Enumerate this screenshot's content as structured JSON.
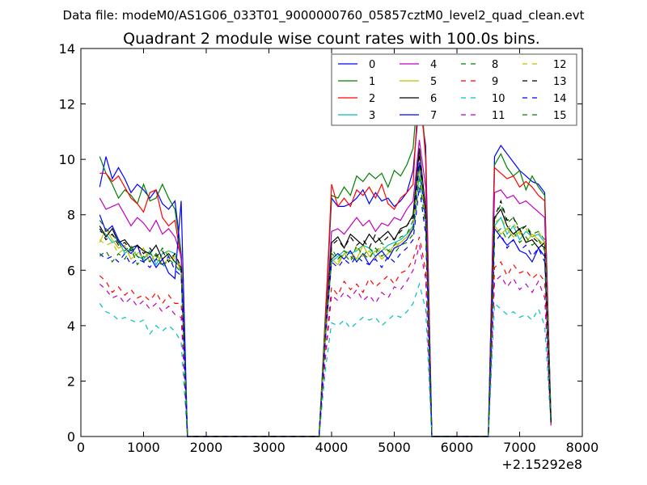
{
  "chart_data": {
    "type": "line",
    "suptitle": "Data file: modeM0/AS1G06_033T01_9000000760_05857cztM0_level2_quad_clean.evt",
    "title": "Quadrant 2 module wise count rates with 100.0s bins.",
    "xlabel": "",
    "ylabel": "",
    "x_offset_label": "+2.15292e8",
    "xlim": [
      0,
      8000
    ],
    "ylim": [
      0,
      14
    ],
    "xticks": [
      0,
      1000,
      2000,
      3000,
      4000,
      5000,
      6000,
      7000,
      8000
    ],
    "yticks": [
      0,
      2,
      4,
      6,
      8,
      10,
      12,
      14
    ],
    "grid": false,
    "legend_position": "top-right",
    "legend_columns": 4,
    "x": [
      300,
      400,
      500,
      600,
      700,
      800,
      900,
      1000,
      1100,
      1200,
      1300,
      1400,
      1500,
      1600,
      1700,
      3800,
      3900,
      4000,
      4100,
      4200,
      4300,
      4400,
      4500,
      4600,
      4700,
      4800,
      4900,
      5000,
      5100,
      5200,
      5300,
      5400,
      5500,
      5600,
      6500,
      6600,
      6700,
      6800,
      6900,
      7000,
      7100,
      7200,
      7300,
      7400,
      7500
    ],
    "series": [
      {
        "name": "0",
        "color": "#0000ff",
        "dash": "solid",
        "values": [
          9.0,
          10.1,
          9.3,
          9.7,
          9.3,
          8.8,
          9.1,
          8.9,
          8.6,
          8.9,
          8.4,
          8.2,
          8.5,
          6.6,
          0,
          0,
          4.2,
          8.6,
          8.3,
          8.3,
          8.4,
          8.6,
          8.9,
          8.4,
          8.8,
          8.5,
          8.6,
          8.3,
          8.5,
          8.8,
          9.6,
          12.1,
          10.5,
          0,
          0,
          10.1,
          10.5,
          10.2,
          9.9,
          9.6,
          9.4,
          9.2,
          9.1,
          8.8,
          0.6
        ]
      },
      {
        "name": "1",
        "color": "#008000",
        "dash": "solid",
        "values": [
          10.1,
          9.5,
          9.1,
          8.6,
          8.9,
          8.7,
          8.4,
          9.1,
          8.5,
          8.6,
          9.1,
          8.6,
          8.2,
          6.6,
          0,
          0,
          4.4,
          8.7,
          8.6,
          9.0,
          8.7,
          9.4,
          9.2,
          9.5,
          9.3,
          9.5,
          9.0,
          9.6,
          9.4,
          9.8,
          10.4,
          13.2,
          10.1,
          0,
          0,
          9.8,
          10.2,
          9.7,
          9.4,
          9.6,
          8.9,
          9.4,
          9.0,
          8.7,
          0.6
        ]
      },
      {
        "name": "2",
        "color": "#ff0000",
        "dash": "solid",
        "values": [
          9.5,
          9.5,
          9.2,
          9.4,
          9.0,
          8.6,
          8.4,
          8.1,
          8.8,
          8.9,
          7.9,
          7.6,
          7.8,
          6.4,
          0,
          0,
          4.1,
          9.1,
          8.3,
          8.6,
          8.3,
          8.9,
          8.7,
          9.0,
          8.6,
          9.1,
          8.4,
          8.2,
          8.6,
          8.8,
          9.1,
          13.0,
          10.0,
          0,
          0,
          9.7,
          9.5,
          9.3,
          9.4,
          9.0,
          9.2,
          9.0,
          8.7,
          8.5,
          0.5
        ]
      },
      {
        "name": "3",
        "color": "#00bfbf",
        "dash": "solid",
        "values": [
          7.4,
          7.3,
          7.0,
          7.1,
          6.6,
          6.8,
          6.5,
          6.4,
          6.7,
          6.2,
          6.6,
          6.7,
          6.6,
          5.9,
          0,
          0,
          3.6,
          6.3,
          6.5,
          6.7,
          6.6,
          6.7,
          6.9,
          6.8,
          6.5,
          6.7,
          6.9,
          7.0,
          7.1,
          7.3,
          7.6,
          9.4,
          8.0,
          0,
          0,
          7.6,
          7.9,
          7.3,
          7.6,
          7.1,
          7.4,
          7.2,
          7.3,
          7.0,
          0.5
        ]
      },
      {
        "name": "4",
        "color": "#bf00bf",
        "dash": "solid",
        "values": [
          8.6,
          8.2,
          8.3,
          8.4,
          8.0,
          7.6,
          7.9,
          7.7,
          7.4,
          7.8,
          7.3,
          7.5,
          7.2,
          6.5,
          0,
          0,
          3.9,
          7.4,
          7.5,
          7.3,
          7.6,
          7.9,
          7.6,
          7.8,
          7.4,
          7.7,
          7.6,
          7.9,
          7.8,
          8.2,
          8.5,
          10.7,
          9.0,
          0,
          0,
          8.8,
          8.9,
          8.6,
          8.7,
          8.4,
          8.5,
          8.3,
          8.1,
          7.9,
          0.5
        ]
      },
      {
        "name": "5",
        "color": "#bfbf00",
        "dash": "solid",
        "values": [
          7.0,
          7.5,
          7.1,
          6.8,
          6.9,
          6.4,
          6.6,
          6.8,
          6.3,
          6.6,
          6.2,
          6.4,
          6.5,
          6.1,
          0,
          0,
          3.8,
          6.4,
          6.2,
          6.6,
          6.7,
          6.4,
          6.9,
          6.5,
          6.7,
          6.4,
          6.6,
          6.9,
          7.0,
          7.2,
          7.5,
          9.8,
          7.9,
          0,
          0,
          7.6,
          7.3,
          7.5,
          7.2,
          7.4,
          7.0,
          7.3,
          7.1,
          6.9,
          0.5
        ]
      },
      {
        "name": "6",
        "color": "#000000",
        "dash": "solid",
        "values": [
          7.6,
          7.2,
          7.5,
          7.0,
          7.1,
          6.8,
          6.9,
          6.7,
          6.6,
          6.9,
          6.4,
          6.6,
          6.3,
          6.1,
          0,
          0,
          3.6,
          7.0,
          7.2,
          6.8,
          7.3,
          7.1,
          6.9,
          7.3,
          7.0,
          7.2,
          7.4,
          7.1,
          7.5,
          7.6,
          8.0,
          10.4,
          8.2,
          0,
          0,
          7.9,
          8.2,
          7.6,
          7.3,
          7.5,
          7.0,
          7.1,
          6.8,
          7.0,
          0.5
        ]
      },
      {
        "name": "7",
        "color": "#0000ff",
        "dash": "solid",
        "values": [
          8.0,
          7.4,
          7.6,
          7.1,
          6.8,
          6.6,
          6.9,
          6.3,
          6.5,
          6.1,
          6.4,
          5.9,
          5.7,
          8.5,
          0,
          0,
          3.7,
          6.4,
          6.6,
          6.4,
          6.7,
          6.3,
          6.6,
          6.2,
          6.5,
          6.7,
          6.4,
          6.8,
          6.9,
          7.1,
          7.5,
          9.9,
          7.8,
          0,
          0,
          7.5,
          7.2,
          6.9,
          7.1,
          6.7,
          6.6,
          6.3,
          6.8,
          6.5,
          0.5
        ]
      },
      {
        "name": "8",
        "color": "#008000",
        "dash": "dashed",
        "values": [
          7.8,
          7.5,
          7.3,
          7.0,
          6.7,
          6.9,
          6.5,
          6.3,
          6.6,
          6.4,
          6.8,
          6.5,
          6.3,
          6.0,
          0,
          0,
          3.8,
          6.8,
          6.4,
          6.6,
          6.3,
          6.9,
          6.5,
          6.8,
          6.6,
          7.0,
          6.7,
          6.9,
          7.2,
          7.3,
          7.8,
          9.7,
          8.1,
          0,
          0,
          7.8,
          8.4,
          7.7,
          7.9,
          7.5,
          7.6,
          7.3,
          7.4,
          7.1,
          0.6
        ]
      },
      {
        "name": "9",
        "color": "#ff0000",
        "dash": "dashed",
        "values": [
          5.8,
          5.6,
          5.2,
          5.4,
          5.1,
          5.3,
          5.0,
          5.1,
          4.9,
          5.2,
          4.8,
          5.1,
          4.8,
          4.8,
          0,
          0,
          3.0,
          5.4,
          5.1,
          5.6,
          5.3,
          5.5,
          5.2,
          5.7,
          5.4,
          5.6,
          5.8,
          5.5,
          5.9,
          6.0,
          6.4,
          7.2,
          6.0,
          0,
          0,
          6.1,
          6.3,
          5.8,
          6.2,
          5.9,
          6.0,
          5.7,
          5.9,
          5.6,
          0.4
        ]
      },
      {
        "name": "10",
        "color": "#00bfbf",
        "dash": "dashed",
        "values": [
          4.8,
          4.5,
          4.4,
          4.2,
          4.3,
          4.2,
          4.1,
          4.2,
          3.7,
          4.0,
          3.8,
          4.0,
          3.8,
          3.4,
          0,
          0,
          2.4,
          4.1,
          4.0,
          4.2,
          3.9,
          4.1,
          4.3,
          4.2,
          4.3,
          4.0,
          4.2,
          4.4,
          4.3,
          4.5,
          4.8,
          5.5,
          4.6,
          0,
          0,
          4.8,
          4.6,
          4.4,
          4.5,
          4.3,
          4.4,
          4.2,
          4.6,
          4.0,
          0.4
        ]
      },
      {
        "name": "11",
        "color": "#bf00bf",
        "dash": "dashed",
        "values": [
          5.5,
          5.3,
          5.0,
          5.1,
          4.8,
          5.0,
          4.7,
          4.9,
          4.6,
          4.8,
          4.5,
          4.7,
          4.4,
          4.3,
          0,
          0,
          2.8,
          5.1,
          4.9,
          5.2,
          5.0,
          5.3,
          4.9,
          5.1,
          4.8,
          5.2,
          5.0,
          5.4,
          5.3,
          5.6,
          6.0,
          6.9,
          5.7,
          0,
          0,
          5.6,
          5.8,
          5.4,
          5.7,
          5.3,
          5.5,
          5.2,
          5.6,
          5.0,
          0.4
        ]
      },
      {
        "name": "12",
        "color": "#bfbf00",
        "dash": "dashed",
        "values": [
          7.1,
          6.9,
          7.0,
          6.6,
          6.8,
          6.5,
          6.7,
          6.4,
          6.6,
          6.3,
          6.5,
          6.7,
          6.4,
          6.0,
          0,
          0,
          3.7,
          6.5,
          6.3,
          6.6,
          6.4,
          6.8,
          6.5,
          6.7,
          6.4,
          6.9,
          6.6,
          6.8,
          7.0,
          7.2,
          7.6,
          9.6,
          7.9,
          0,
          0,
          7.7,
          7.9,
          7.5,
          7.7,
          7.3,
          7.5,
          7.2,
          7.4,
          7.0,
          0.5
        ]
      },
      {
        "name": "13",
        "color": "#000000",
        "dash": "dashed",
        "values": [
          7.5,
          7.1,
          7.3,
          6.9,
          7.0,
          6.7,
          6.9,
          6.6,
          6.8,
          6.5,
          6.7,
          6.3,
          6.6,
          6.1,
          0,
          0,
          3.6,
          6.9,
          7.1,
          6.8,
          7.2,
          6.9,
          7.1,
          6.8,
          7.3,
          7.0,
          7.2,
          7.1,
          7.4,
          7.6,
          7.9,
          10.2,
          8.1,
          0,
          0,
          7.9,
          8.5,
          7.8,
          7.9,
          7.4,
          7.6,
          7.2,
          7.0,
          6.8,
          0.5
        ]
      },
      {
        "name": "14",
        "color": "#0000ff",
        "dash": "dashed",
        "values": [
          6.6,
          6.4,
          6.5,
          6.3,
          6.6,
          6.2,
          6.4,
          6.3,
          6.1,
          6.4,
          6.2,
          6.5,
          6.0,
          5.8,
          0,
          0,
          3.5,
          6.3,
          6.1,
          6.4,
          6.2,
          6.5,
          6.3,
          6.2,
          6.4,
          6.1,
          6.5,
          6.3,
          6.6,
          6.8,
          7.1,
          9.0,
          7.3,
          0,
          0,
          7.0,
          7.3,
          6.8,
          7.1,
          6.7,
          6.9,
          6.5,
          6.8,
          6.3,
          0.5
        ]
      },
      {
        "name": "15",
        "color": "#008000",
        "dash": "dashed",
        "values": [
          6.5,
          6.7,
          6.3,
          6.6,
          6.4,
          6.8,
          6.2,
          6.5,
          6.3,
          6.6,
          6.1,
          6.4,
          6.2,
          5.9,
          0,
          0,
          3.6,
          6.6,
          6.4,
          6.7,
          6.5,
          6.3,
          6.6,
          6.4,
          6.8,
          6.5,
          6.7,
          6.6,
          6.9,
          7.0,
          7.3,
          9.3,
          7.6,
          0,
          0,
          7.3,
          7.5,
          7.1,
          7.4,
          7.0,
          7.2,
          6.9,
          7.1,
          6.7,
          0.5
        ]
      }
    ]
  }
}
